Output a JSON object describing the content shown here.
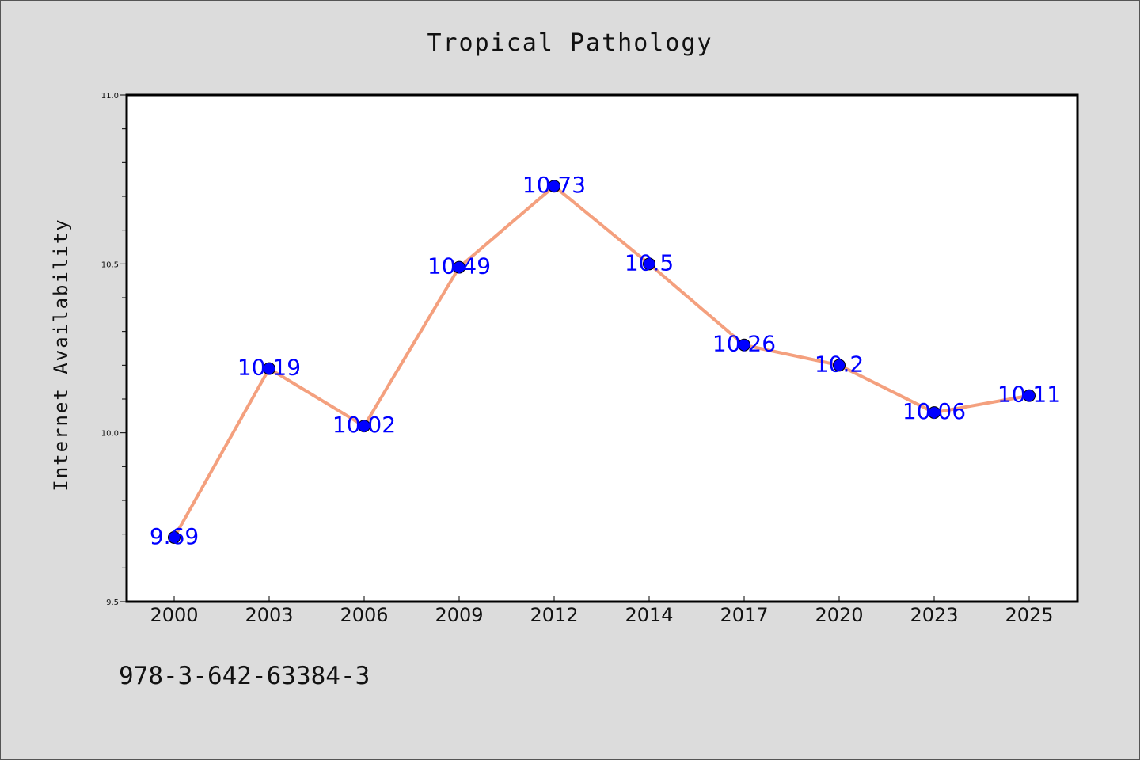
{
  "footer": {
    "isbn": "978-3-642-63384-3"
  },
  "chart_data": {
    "type": "line",
    "title": "Tropical Pathology",
    "xlabel": "",
    "ylabel": "Internet Availability",
    "categories": [
      "2000",
      "2003",
      "2006",
      "2009",
      "2012",
      "2014",
      "2017",
      "2020",
      "2023",
      "2025"
    ],
    "series": [
      {
        "values": [
          9.69,
          10.19,
          10.02,
          10.49,
          10.73,
          10.5,
          10.26,
          10.2,
          10.06,
          10.11
        ],
        "data_labels": [
          "9.69",
          "10.19",
          "10.02",
          "10.49",
          "10.73",
          "10.5",
          "10.26",
          "10.2",
          "10.06",
          "10.11"
        ]
      }
    ],
    "ylim": [
      9.5,
      11.0
    ],
    "yticks": [
      "9.5",
      "10.0",
      "10.5",
      "11.0"
    ],
    "grid": false,
    "colors": {
      "line": "#f4a07e",
      "marker": "#0000ff",
      "label": "#0000ff",
      "background": "#dcdcdc",
      "plot_area": "#ffffff"
    }
  }
}
